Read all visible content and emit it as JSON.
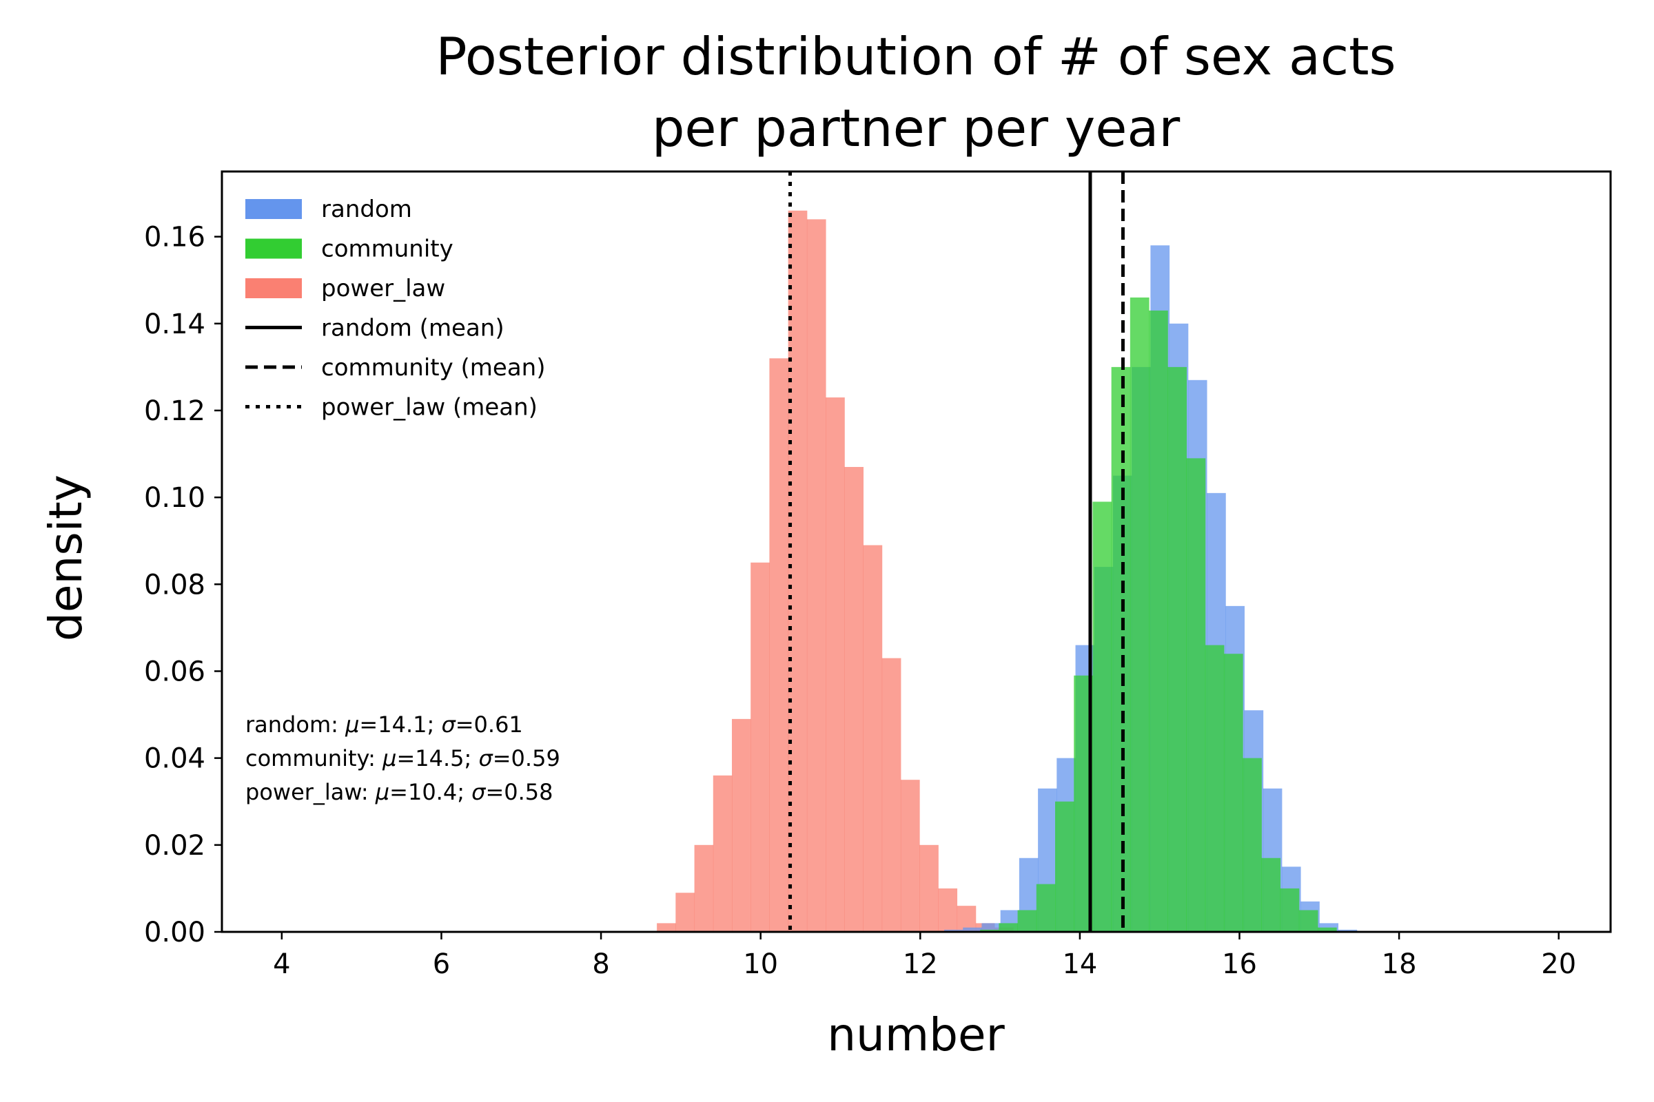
{
  "chart_data": {
    "type": "histogram",
    "title_lines": [
      "Posterior distribution of # of sex acts",
      "per partner per year"
    ],
    "xlabel": "number",
    "ylabel": "density",
    "xlim": [
      3.25,
      20.65
    ],
    "ylim": [
      0,
      0.175
    ],
    "xticks": [
      4,
      6,
      8,
      10,
      12,
      14,
      16,
      18,
      20
    ],
    "xtick_labels": [
      "4",
      "6",
      "8",
      "10",
      "12",
      "14",
      "16",
      "18",
      "20"
    ],
    "yticks": [
      0,
      0.02,
      0.04,
      0.06,
      0.08,
      0.1,
      0.12,
      0.14,
      0.16
    ],
    "ytick_labels": [
      "0.00",
      "0.02",
      "0.04",
      "0.06",
      "0.08",
      "0.10",
      "0.12",
      "0.14",
      "0.16"
    ],
    "grid": false,
    "legend_position": "upper-left",
    "series": [
      {
        "name": "power_law",
        "color": "#fa8072",
        "opacity": 0.75,
        "bin_start": 8.7,
        "bin_width": 0.235,
        "values": [
          0.002,
          0.009,
          0.02,
          0.036,
          0.049,
          0.085,
          0.132,
          0.166,
          0.164,
          0.123,
          0.107,
          0.089,
          0.063,
          0.035,
          0.02,
          0.01,
          0.006,
          0.002,
          0.001
        ]
      },
      {
        "name": "random",
        "color": "#6495ed",
        "opacity": 0.75,
        "bin_start": 12.3,
        "bin_width": 0.235,
        "values": [
          0.0005,
          0.001,
          0.002,
          0.005,
          0.017,
          0.033,
          0.04,
          0.066,
          0.084,
          0.105,
          0.13,
          0.158,
          0.14,
          0.127,
          0.101,
          0.075,
          0.051,
          0.033,
          0.015,
          0.007,
          0.002,
          0.0005
        ]
      },
      {
        "name": "community",
        "color": "#32cd32",
        "opacity": 0.75,
        "bin_start": 12.75,
        "bin_width": 0.235,
        "values": [
          0.0005,
          0.002,
          0.005,
          0.011,
          0.03,
          0.059,
          0.099,
          0.13,
          0.146,
          0.143,
          0.13,
          0.109,
          0.066,
          0.064,
          0.04,
          0.017,
          0.01,
          0.005,
          0.001
        ]
      }
    ],
    "mean_lines": [
      {
        "name": "random (mean)",
        "x": 14.13,
        "style": "solid"
      },
      {
        "name": "community (mean)",
        "x": 14.54,
        "style": "dashed"
      },
      {
        "name": "power_law (mean)",
        "x": 10.37,
        "style": "dotted"
      }
    ],
    "legend": [
      {
        "label": "random",
        "kind": "patch",
        "color": "#6495ed"
      },
      {
        "label": "community",
        "kind": "patch",
        "color": "#32cd32"
      },
      {
        "label": "power_law",
        "kind": "patch",
        "color": "#fa8072"
      },
      {
        "label": "random (mean)",
        "kind": "line",
        "style": "solid"
      },
      {
        "label": "community (mean)",
        "kind": "line",
        "style": "dashed"
      },
      {
        "label": "power_law (mean)",
        "kind": "line",
        "style": "dotted"
      }
    ],
    "stats": [
      {
        "name": "random",
        "mu": "14.1",
        "sigma": "0.61"
      },
      {
        "name": "community",
        "mu": "14.5",
        "sigma": "0.59"
      },
      {
        "name": "power_law",
        "mu": "10.4",
        "sigma": "0.58"
      }
    ]
  }
}
